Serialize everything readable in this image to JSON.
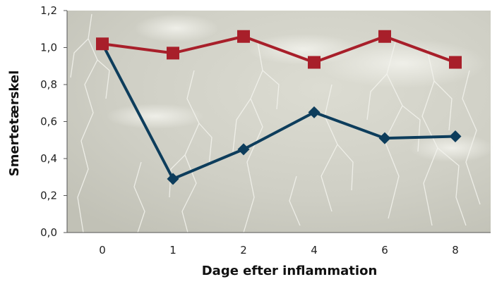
{
  "chart_data": {
    "type": "line",
    "title": "",
    "xlabel": "Dage efter inflammation",
    "ylabel": "Smertetærskel",
    "categories": [
      "0",
      "1",
      "2",
      "4",
      "6",
      "8"
    ],
    "ylim": [
      0.0,
      1.2
    ],
    "yticks": [
      "0,0",
      "0,2",
      "0,4",
      "0,6",
      "0,8",
      "1,0",
      "1,2"
    ],
    "grid": false,
    "legend": "none",
    "background": "grey sky with lightning",
    "series": [
      {
        "color": "#a81f2a",
        "marker": "square",
        "values": [
          1.02,
          0.97,
          1.06,
          0.92,
          1.06,
          0.92
        ]
      },
      {
        "color": "#0d3d5c",
        "marker": "diamond",
        "values": [
          1.02,
          0.29,
          0.45,
          0.65,
          0.51,
          0.52
        ]
      }
    ]
  }
}
